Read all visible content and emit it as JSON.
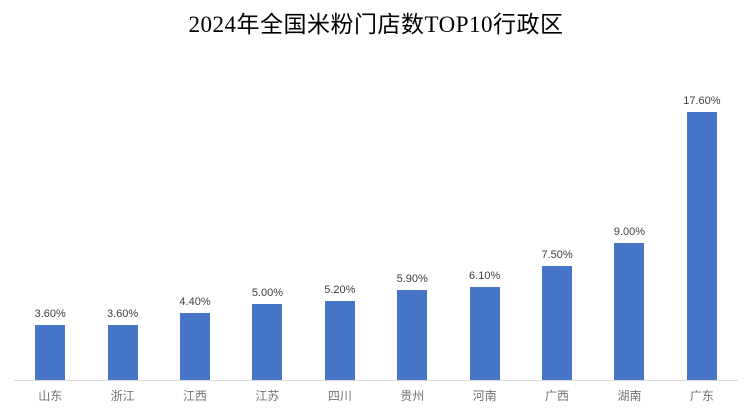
{
  "title": "2024年全国米粉门店数TOP10行政区",
  "chart_data": {
    "type": "bar",
    "title": "2024年全国米粉门店数TOP10行政区",
    "categories": [
      "山东",
      "浙江",
      "江西",
      "江苏",
      "四川",
      "贵州",
      "河南",
      "广西",
      "湖南",
      "广东"
    ],
    "values": [
      3.6,
      3.6,
      4.4,
      5.0,
      5.2,
      5.9,
      6.1,
      7.5,
      9.0,
      17.6
    ],
    "value_labels": [
      "3.60%",
      "3.60%",
      "4.40%",
      "5.00%",
      "5.20%",
      "5.90%",
      "6.10%",
      "7.50%",
      "9.00%",
      "17.60%"
    ],
    "xlabel": "",
    "ylabel": "",
    "ylim": [
      0,
      18
    ],
    "grid": false,
    "legend": false,
    "colors": {
      "bar": "#4775C8",
      "axis_line": "#D9D9D9",
      "value_label": "#3F3F3F",
      "category_label": "#737373",
      "title": "#000000",
      "background": "#FFFFFF"
    }
  }
}
